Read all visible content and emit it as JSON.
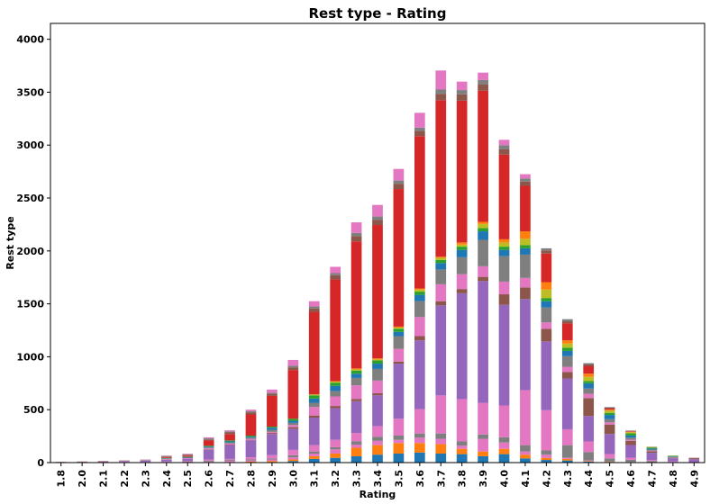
{
  "chart_data": {
    "type": "bar",
    "stacked": true,
    "title": "Rest type - Rating",
    "xlabel": "Rating",
    "ylabel": "Rest type",
    "ylim": [
      0,
      4150
    ],
    "yticks": [
      0,
      500,
      1000,
      1500,
      2000,
      2500,
      3000,
      3500,
      4000
    ],
    "grid": false,
    "legend": "none",
    "categories": [
      "1.8",
      "2.0",
      "2.1",
      "2.2",
      "2.3",
      "2.4",
      "2.5",
      "2.6",
      "2.7",
      "2.8",
      "2.9",
      "3.0",
      "3.1",
      "3.2",
      "3.3",
      "3.4",
      "3.5",
      "3.6",
      "3.7",
      "3.8",
      "3.9",
      "4.0",
      "4.1",
      "4.2",
      "4.3",
      "4.4",
      "4.5",
      "4.6",
      "4.7",
      "4.8",
      "4.9"
    ],
    "series": [
      {
        "color": "#1f77b4",
        "values": [
          0,
          0,
          0,
          0,
          0,
          0,
          0,
          0,
          0,
          0,
          5,
          15,
          35,
          45,
          60,
          75,
          85,
          95,
          85,
          80,
          60,
          80,
          40,
          25,
          20,
          10,
          5,
          3,
          2,
          1,
          0
        ]
      },
      {
        "color": "#ff7f0e",
        "values": [
          0,
          0,
          0,
          0,
          0,
          0,
          0,
          5,
          5,
          10,
          10,
          15,
          25,
          40,
          80,
          90,
          100,
          90,
          90,
          50,
          45,
          50,
          35,
          20,
          15,
          5,
          3,
          2,
          1,
          0,
          0
        ]
      },
      {
        "color": "#e377c2",
        "values": [
          0,
          0,
          0,
          0,
          0,
          0,
          0,
          5,
          10,
          10,
          15,
          20,
          25,
          40,
          30,
          40,
          30,
          50,
          50,
          30,
          120,
          60,
          30,
          30,
          10,
          5,
          2,
          1,
          0,
          0,
          0
        ]
      },
      {
        "color": "#7f7f7f",
        "values": [
          3,
          4,
          4,
          4,
          4,
          6,
          8,
          10,
          10,
          10,
          10,
          20,
          20,
          20,
          30,
          40,
          40,
          40,
          50,
          40,
          40,
          50,
          60,
          40,
          120,
          80,
          30,
          20,
          12,
          5,
          2
        ]
      },
      {
        "color": "#e377c2",
        "values": [
          0,
          0,
          0,
          2,
          2,
          4,
          6,
          10,
          10,
          20,
          30,
          50,
          60,
          70,
          80,
          100,
          160,
          230,
          360,
          400,
          300,
          300,
          520,
          380,
          150,
          100,
          40,
          20,
          8,
          5,
          0
        ]
      },
      {
        "color": "#9467bd",
        "values": [
          2,
          3,
          5,
          8,
          12,
          16,
          20,
          90,
          130,
          160,
          200,
          200,
          260,
          300,
          300,
          290,
          520,
          650,
          850,
          1000,
          1150,
          950,
          860,
          650,
          480,
          240,
          190,
          120,
          70,
          30,
          30
        ]
      },
      {
        "color": "#8c564b",
        "values": [
          0,
          0,
          0,
          0,
          0,
          0,
          0,
          5,
          5,
          5,
          10,
          15,
          20,
          20,
          20,
          20,
          20,
          40,
          40,
          40,
          40,
          100,
          110,
          120,
          60,
          170,
          90,
          40,
          15,
          5,
          10
        ]
      },
      {
        "color": "#e377c2",
        "values": [
          0,
          0,
          2,
          2,
          4,
          6,
          8,
          10,
          10,
          10,
          10,
          20,
          80,
          90,
          130,
          120,
          120,
          180,
          160,
          140,
          100,
          120,
          90,
          60,
          50,
          40,
          20,
          10,
          5,
          2,
          2
        ]
      },
      {
        "color": "#7f7f7f",
        "values": [
          0,
          0,
          0,
          0,
          0,
          4,
          5,
          8,
          10,
          10,
          20,
          20,
          40,
          50,
          70,
          110,
          120,
          150,
          140,
          160,
          250,
          240,
          220,
          140,
          100,
          50,
          30,
          20,
          10,
          5,
          0
        ]
      },
      {
        "color": "#1f77b4",
        "values": [
          0,
          0,
          0,
          0,
          2,
          4,
          5,
          8,
          10,
          10,
          20,
          20,
          40,
          50,
          40,
          50,
          40,
          60,
          60,
          70,
          80,
          60,
          60,
          60,
          50,
          50,
          40,
          20,
          10,
          5,
          0
        ]
      },
      {
        "color": "#2ca02c",
        "values": [
          0,
          0,
          0,
          0,
          0,
          4,
          4,
          8,
          10,
          10,
          10,
          20,
          30,
          30,
          30,
          30,
          30,
          30,
          30,
          30,
          30,
          30,
          30,
          30,
          30,
          20,
          20,
          20,
          10,
          5,
          0
        ]
      },
      {
        "color": "#bcbd22",
        "values": [
          0,
          0,
          0,
          0,
          0,
          0,
          0,
          0,
          0,
          0,
          0,
          0,
          10,
          10,
          10,
          10,
          10,
          20,
          20,
          20,
          40,
          40,
          60,
          80,
          40,
          40,
          20,
          10,
          5,
          3,
          0
        ]
      },
      {
        "color": "#ff7f0e",
        "values": [
          0,
          0,
          0,
          0,
          0,
          0,
          0,
          0,
          0,
          0,
          0,
          0,
          0,
          5,
          10,
          10,
          10,
          10,
          10,
          20,
          20,
          30,
          70,
          70,
          30,
          30,
          10,
          5,
          0,
          0,
          0
        ]
      },
      {
        "color": "#d62728",
        "values": [
          0,
          0,
          0,
          0,
          0,
          8,
          10,
          50,
          60,
          200,
          290,
          460,
          780,
          960,
          1200,
          1260,
          1300,
          1440,
          1480,
          1340,
          1240,
          800,
          430,
          270,
          160,
          70,
          10,
          5,
          0,
          0,
          0
        ]
      },
      {
        "color": "#8c564b",
        "values": [
          2,
          3,
          4,
          4,
          4,
          6,
          8,
          10,
          15,
          20,
          20,
          25,
          30,
          40,
          50,
          50,
          50,
          50,
          60,
          60,
          60,
          50,
          40,
          30,
          20,
          20,
          10,
          5,
          2,
          1,
          2
        ]
      },
      {
        "color": "#7f7f7f",
        "values": [
          0,
          0,
          0,
          0,
          0,
          5,
          5,
          10,
          10,
          10,
          10,
          15,
          20,
          20,
          30,
          30,
          30,
          30,
          40,
          40,
          40,
          40,
          30,
          20,
          20,
          10,
          5,
          2,
          0,
          0,
          0
        ]
      },
      {
        "color": "#e377c2",
        "values": [
          0,
          0,
          0,
          0,
          0,
          3,
          5,
          10,
          10,
          15,
          30,
          55,
          50,
          60,
          100,
          110,
          110,
          140,
          180,
          80,
          70,
          50,
          40,
          0,
          0,
          0,
          0,
          0,
          0,
          0,
          0
        ]
      }
    ]
  }
}
